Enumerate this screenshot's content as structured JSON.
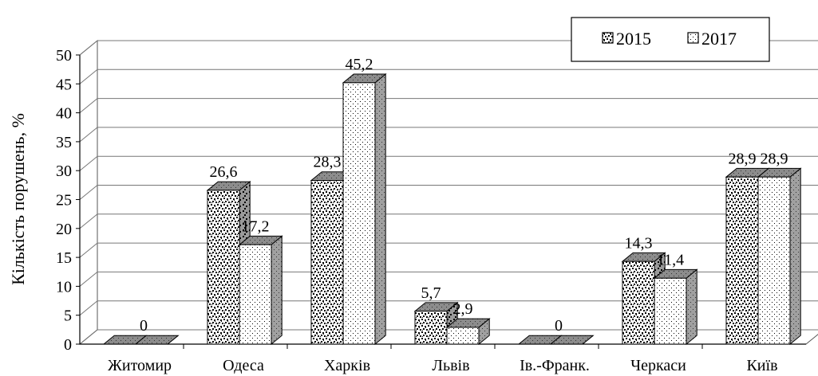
{
  "chart_data": {
    "type": "bar",
    "categories": [
      "Житомир",
      "Одеса",
      "Харків",
      "Львів",
      "Ів.-Франк.",
      "Черкаси",
      "Київ"
    ],
    "series": [
      {
        "name": "2015",
        "values": [
          0,
          26.6,
          28.3,
          5.7,
          0,
          14.3,
          28.9
        ],
        "labels": [
          "",
          "26,6",
          "28,3",
          "5,7",
          "",
          "14,3",
          "28,9"
        ]
      },
      {
        "name": "2017",
        "values": [
          0,
          17.2,
          45.2,
          2.9,
          0,
          11.4,
          28.9
        ],
        "labels": [
          "0",
          "17,2",
          "45,2",
          "2,9",
          "0",
          "11,4",
          "28,9"
        ]
      }
    ],
    "ylabel": "Кількість порушень, %",
    "xlabel": "",
    "ylim": [
      0,
      50
    ],
    "yticks": [
      "0",
      "5",
      "10",
      "15",
      "20",
      "25",
      "30",
      "35",
      "40",
      "45",
      "50"
    ],
    "grid": true,
    "legend_position": "top-right",
    "style": "3d-clustered-column"
  }
}
